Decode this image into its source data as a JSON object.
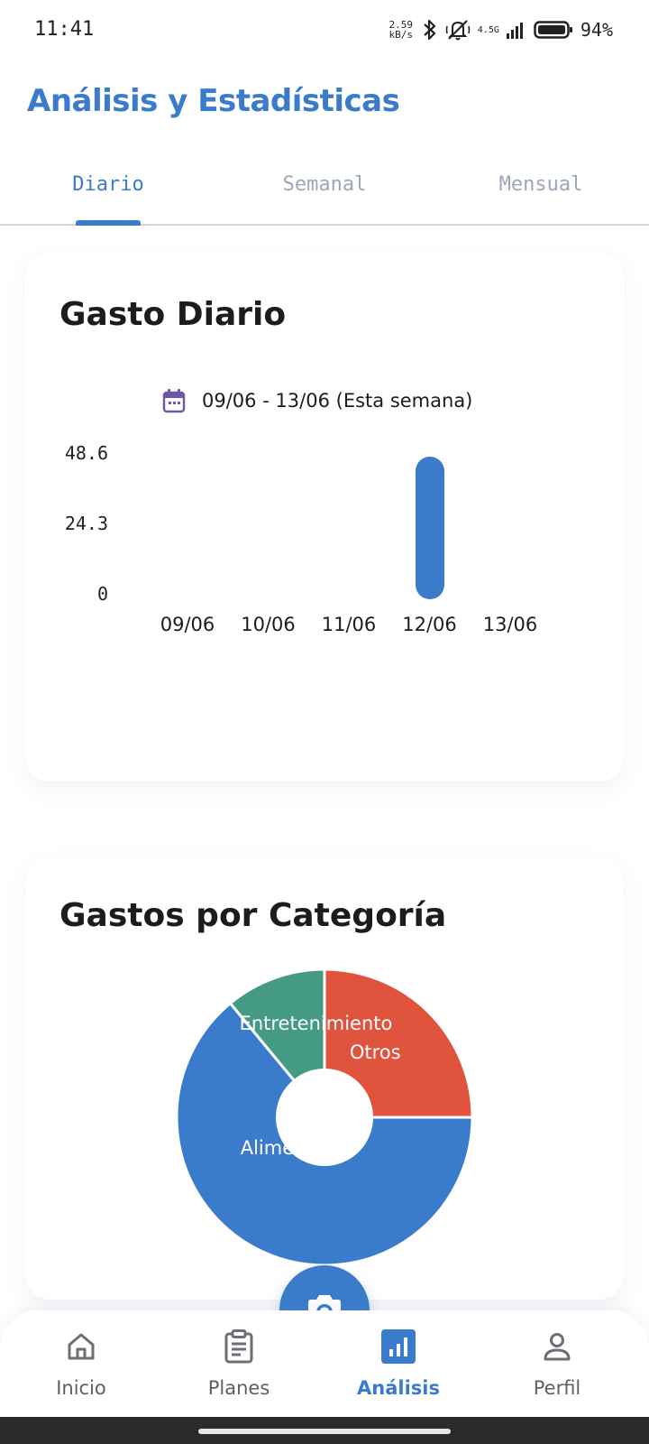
{
  "status": {
    "time": "11:41",
    "net_speed": "2.59\nkB/s",
    "net_type": "4.5G",
    "battery": "94%"
  },
  "header": {
    "title": "Análisis y Estadísticas"
  },
  "tabs": [
    {
      "label": "Diario",
      "active": true
    },
    {
      "label": "Semanal",
      "active": false
    },
    {
      "label": "Mensual",
      "active": false
    }
  ],
  "daily_card": {
    "title": "Gasto Diario",
    "date_range": "09/06 - 13/06 (Esta semana)"
  },
  "category_card": {
    "title": "Gastos por Categoría"
  },
  "chart_data": [
    {
      "type": "bar",
      "categories": [
        "09/06",
        "10/06",
        "11/06",
        "12/06",
        "13/06"
      ],
      "values": [
        0,
        0,
        0,
        48.6,
        0
      ],
      "y_ticks": [
        "48.6",
        "24.3",
        "0"
      ],
      "ylim": [
        0,
        48.6
      ],
      "color": "#3a7ccb",
      "grid": false
    },
    {
      "type": "pie",
      "slices": [
        {
          "label": "Alimentos",
          "value": 64,
          "color": "#3a7ccb"
        },
        {
          "label": "Entretenimiento",
          "value": 11,
          "color": "#459a84"
        },
        {
          "label": "Otros",
          "value": 25,
          "color": "#e0533d"
        }
      ],
      "donut": true
    }
  ],
  "fab": {
    "icon": "camera-icon"
  },
  "nav": [
    {
      "label": "Inicio",
      "icon": "home-icon",
      "active": false
    },
    {
      "label": "Planes",
      "icon": "clipboard-icon",
      "active": false
    },
    {
      "label": "Análisis",
      "icon": "bar-chart-icon",
      "active": true
    },
    {
      "label": "Perfil",
      "icon": "person-icon",
      "active": false
    }
  ],
  "colors": {
    "accent": "#3a7ccb",
    "inactive_tab": "#9ba8bb",
    "pie_green": "#459a84",
    "pie_red": "#e0533d"
  }
}
